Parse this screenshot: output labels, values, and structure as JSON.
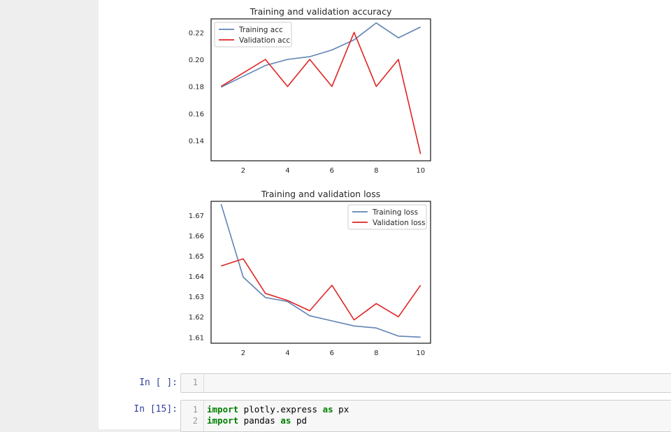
{
  "chart_data": [
    {
      "type": "line",
      "title": "Training and validation accuracy",
      "xlim": [
        0.55,
        10.45
      ],
      "ylim": [
        0.125,
        0.23
      ],
      "xticks": [
        2,
        4,
        6,
        8,
        10
      ],
      "yticks": [
        0.14,
        0.16,
        0.18,
        0.2,
        0.22
      ],
      "ytick_labels": [
        "0.14",
        "0.16",
        "0.18",
        "0.20",
        "0.22"
      ],
      "legend": "top-left",
      "grid": false,
      "x": [
        1,
        2,
        3,
        4,
        5,
        6,
        7,
        8,
        9,
        10
      ],
      "series": [
        {
          "name": "Training acc",
          "color": "#5f84b4",
          "values": [
            0.1795,
            0.1875,
            0.1955,
            0.2,
            0.202,
            0.207,
            0.2145,
            0.227,
            0.216,
            0.224
          ]
        },
        {
          "name": "Validation acc",
          "color": "#e02424",
          "values": [
            0.18,
            0.19,
            0.2,
            0.18,
            0.2,
            0.18,
            0.22,
            0.18,
            0.2,
            0.13
          ]
        }
      ]
    },
    {
      "type": "line",
      "title": "Training and validation loss",
      "xlim": [
        0.55,
        10.45
      ],
      "ylim": [
        1.607,
        1.6768
      ],
      "xticks": [
        2,
        4,
        6,
        8,
        10
      ],
      "yticks": [
        1.61,
        1.62,
        1.63,
        1.64,
        1.65,
        1.66,
        1.67
      ],
      "ytick_labels": [
        "1.61",
        "1.62",
        "1.63",
        "1.64",
        "1.65",
        "1.66",
        "1.67"
      ],
      "legend": "top-right",
      "grid": false,
      "x": [
        1,
        2,
        3,
        4,
        5,
        6,
        7,
        8,
        9,
        10
      ],
      "series": [
        {
          "name": "Training loss",
          "color": "#5f84b4",
          "values": [
            1.6755,
            1.6395,
            1.6295,
            1.6275,
            1.6205,
            1.618,
            1.6155,
            1.6145,
            1.6105,
            1.61
          ]
        },
        {
          "name": "Validation loss",
          "color": "#e02424",
          "values": [
            1.645,
            1.6485,
            1.6315,
            1.628,
            1.623,
            1.6355,
            1.6185,
            1.6265,
            1.62,
            1.6355
          ]
        }
      ]
    }
  ],
  "cells": [
    {
      "prompt": "In [ ]:",
      "lines": [
        "1"
      ],
      "code": []
    },
    {
      "prompt": "In [15]:",
      "lines": [
        "1",
        "2"
      ],
      "code": [
        {
          "kw1": "import",
          "mid": " plotly.express ",
          "kw2": "as",
          "end": " px"
        },
        {
          "kw1": "import",
          "mid": " pandas ",
          "kw2": "as",
          "end": " pd"
        }
      ]
    }
  ]
}
